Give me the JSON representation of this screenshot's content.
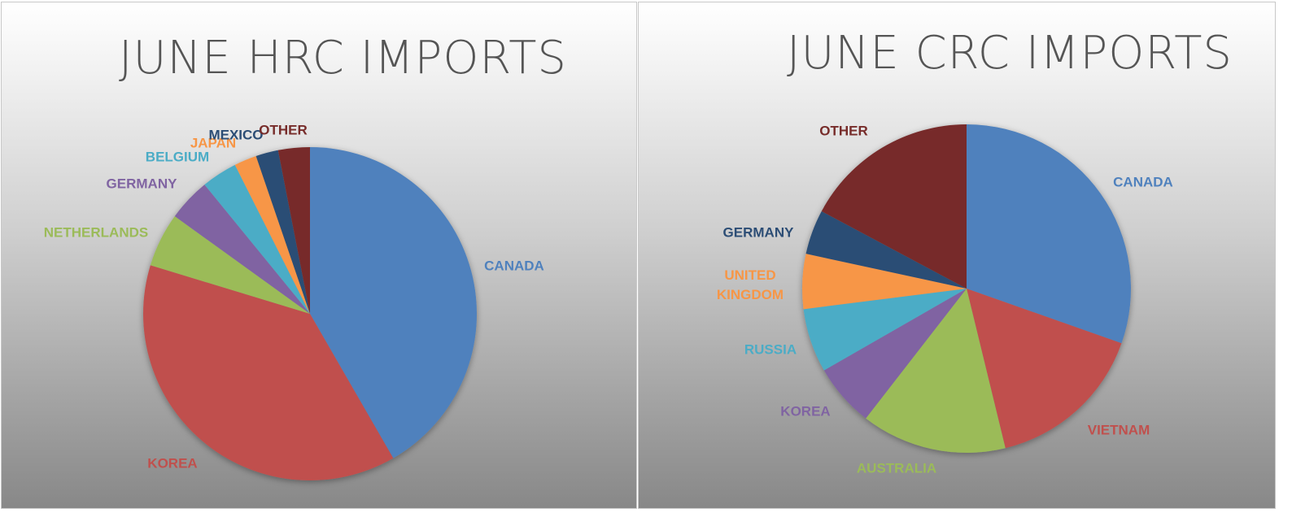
{
  "chart_data": [
    {
      "type": "pie",
      "title": "JUNE HRC IMPORTS",
      "categories": [
        "CANADA",
        "KOREA",
        "NETHERLANDS",
        "GERMANY",
        "BELGIUM",
        "JAPAN",
        "MEXICO",
        "OTHER"
      ],
      "values": [
        42.1,
        38.4,
        5.3,
        4.2,
        3.5,
        2.2,
        2.2,
        3.1
      ],
      "colors": [
        "#4F81BD",
        "#C0504D",
        "#9BBB59",
        "#8064A2",
        "#4BACC6",
        "#F79646",
        "#2C4D75",
        "#772C2A"
      ],
      "legend": "none (labels outside slices)"
    },
    {
      "type": "pie",
      "title": "JUNE CRC IMPORTS",
      "categories": [
        "CANADA",
        "VIETNAM",
        "AUSTRALIA",
        "KOREA",
        "RUSSIA",
        "UNITED KINGDOM",
        "GERMANY",
        "OTHER"
      ],
      "values": [
        30.4,
        15.8,
        14.3,
        6.2,
        6.3,
        5.4,
        4.4,
        17.2
      ],
      "colors": [
        "#4F81BD",
        "#C0504D",
        "#9BBB59",
        "#8064A2",
        "#4BACC6",
        "#F79646",
        "#2C4D75",
        "#772C2A"
      ],
      "legend": "none (labels outside slices)"
    }
  ]
}
